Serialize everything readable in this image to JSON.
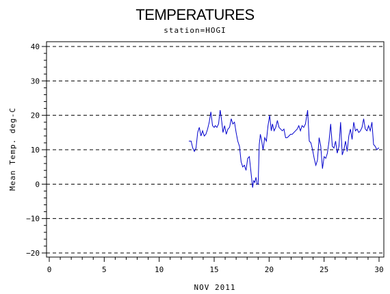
{
  "chart_data": {
    "type": "line",
    "title": "TEMPERATURES",
    "subtitle": "station=HOGI",
    "xlabel": "NOV 2011",
    "ylabel": "Mean Temp. deg-C",
    "xlim": [
      0,
      30
    ],
    "ylim": [
      -21,
      41
    ],
    "x_ticks": [
      0,
      5,
      10,
      15,
      20,
      25,
      30
    ],
    "y_ticks": [
      -20,
      -10,
      0,
      10,
      20,
      30,
      40
    ],
    "reference_lines_y": [
      -20,
      -10,
      0,
      10,
      20,
      30,
      40
    ],
    "grid": "horizontal dashed",
    "series": [
      {
        "color": "#0000cc",
        "x": [
          12.7,
          12.9,
          13.05,
          13.2,
          13.35,
          13.5,
          13.65,
          13.8,
          13.95,
          14.1,
          14.25,
          14.4,
          14.55,
          14.7,
          14.85,
          15.0,
          15.1,
          15.25,
          15.4,
          15.55,
          15.7,
          15.8,
          15.95,
          16.1,
          16.25,
          16.4,
          16.55,
          16.7,
          16.85,
          17.0,
          17.15,
          17.3,
          17.45,
          17.6,
          17.75,
          17.9,
          18.05,
          18.2,
          18.35,
          18.5,
          18.6,
          18.7,
          18.8,
          18.9,
          19.0,
          19.1,
          19.2,
          19.3,
          19.45,
          19.6,
          19.75,
          19.9,
          20.05,
          20.2,
          20.3,
          20.45,
          20.6,
          20.75,
          20.9,
          21.05,
          21.2,
          21.35,
          21.5,
          21.65,
          21.8,
          21.95,
          22.1,
          22.25,
          22.4,
          22.55,
          22.7,
          22.85,
          23.0,
          23.15,
          23.3,
          23.5,
          23.65,
          23.8,
          23.95,
          24.1,
          24.25,
          24.4,
          24.55,
          24.7,
          24.85,
          25.0,
          25.15,
          25.3,
          25.45,
          25.6,
          25.75,
          25.9,
          26.05,
          26.2,
          26.35,
          26.5,
          26.65,
          26.8,
          26.95,
          27.1,
          27.25,
          27.4,
          27.55,
          27.7,
          27.85,
          28.0,
          28.15,
          28.3,
          28.45,
          28.6,
          28.75,
          28.9,
          29.05,
          29.2,
          29.35,
          29.5,
          29.65,
          29.8,
          29.95,
          30.0
        ],
        "y": [
          12.5,
          12.5,
          10.5,
          9.5,
          10.5,
          15,
          16.5,
          14,
          15.5,
          14,
          14.5,
          16,
          18,
          21,
          17,
          16.5,
          17,
          16.5,
          17.5,
          21.5,
          18,
          15,
          17,
          14.5,
          16,
          16.5,
          19,
          17.5,
          18,
          15,
          12.5,
          11,
          6.5,
          5,
          5.5,
          4,
          7.5,
          8,
          3.5,
          -1,
          1,
          0.5,
          2,
          0,
          0,
          11.5,
          14.5,
          13,
          10,
          13.5,
          12.5,
          17,
          20,
          15.5,
          17.5,
          15.5,
          16.5,
          18.5,
          16.5,
          16,
          15.5,
          16,
          13.5,
          13.5,
          14,
          14.5,
          14.5,
          15,
          15.5,
          16,
          17,
          15.5,
          17,
          16.5,
          17.5,
          21.5,
          12.5,
          12,
          10,
          7.5,
          5.5,
          7,
          13.5,
          11,
          4.5,
          8,
          7.5,
          9,
          12.5,
          17.5,
          11,
          10.5,
          12.5,
          9,
          11,
          18,
          8.5,
          10,
          12.5,
          9.5,
          14,
          16,
          13,
          18,
          15.5,
          16,
          15,
          15.5,
          16.5,
          19,
          16,
          15.5,
          17,
          15.5,
          18,
          11.5,
          11,
          10,
          10.5,
          10.5
        ]
      }
    ]
  }
}
